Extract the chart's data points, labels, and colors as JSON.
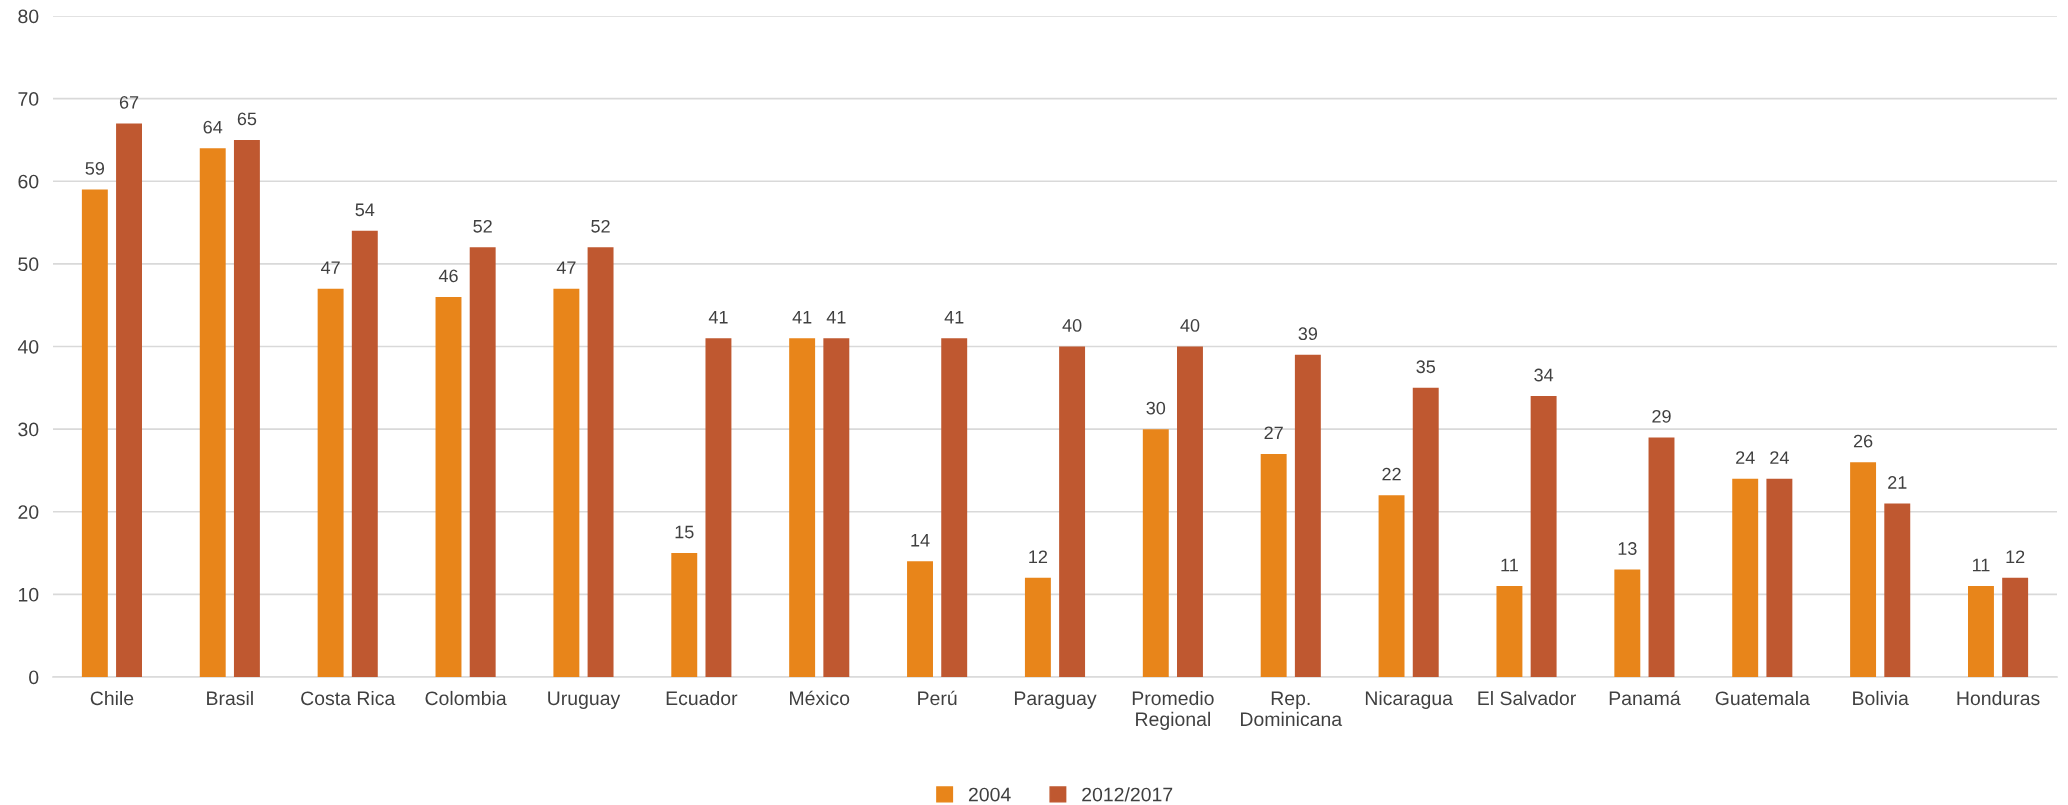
{
  "chart_data": {
    "type": "bar",
    "categories": [
      "Chile",
      "Brasil",
      "Costa Rica",
      "Colombia",
      "Uruguay",
      "Ecuador",
      "México",
      "Perú",
      "Paraguay",
      "Promedio\nRegional",
      "Rep.\nDominicana",
      "Nicaragua",
      "El Salvador",
      "Panamá",
      "Guatemala",
      "Bolivia",
      "Honduras"
    ],
    "series": [
      {
        "name": "2004",
        "color": "#e8851a",
        "values": [
          59,
          64,
          47,
          46,
          47,
          15,
          41,
          14,
          12,
          30,
          27,
          22,
          11,
          13,
          24,
          26,
          11
        ]
      },
      {
        "name": "2012/2017",
        "color": "#bf5830",
        "values": [
          67,
          65,
          54,
          52,
          52,
          41,
          41,
          41,
          40,
          40,
          39,
          35,
          34,
          29,
          24,
          21,
          12
        ]
      }
    ],
    "ylim": [
      0,
      80
    ],
    "yticks": [
      0,
      10,
      20,
      30,
      40,
      50,
      60,
      70,
      80
    ],
    "grid": "y",
    "legend": "bottom",
    "data_labels": true
  }
}
